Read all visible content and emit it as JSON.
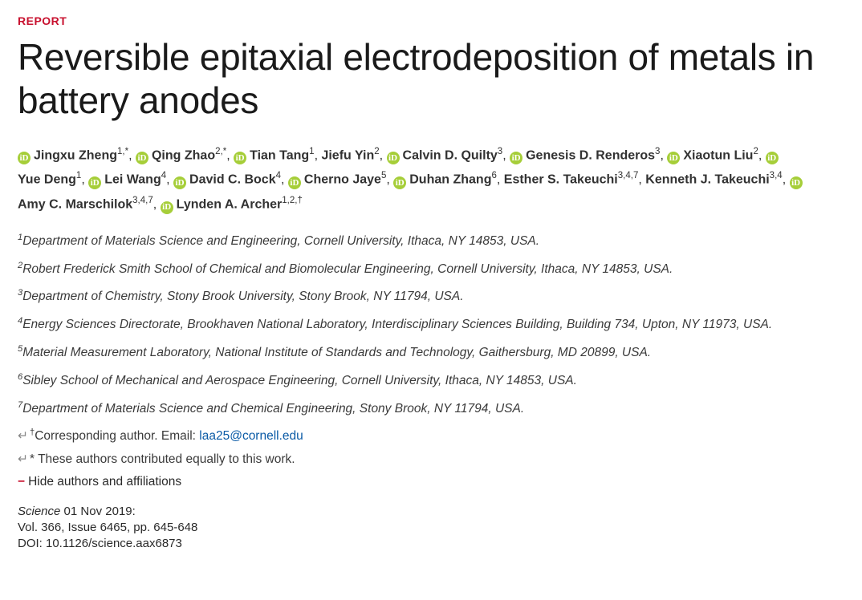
{
  "label": "REPORT",
  "title": "Reversible epitaxial electrodeposition of metals in battery anodes",
  "authors": [
    {
      "name": "Jingxu Zheng",
      "aff": "1,*",
      "orcid": true
    },
    {
      "name": "Qing Zhao",
      "aff": "2,*",
      "orcid": true
    },
    {
      "name": "Tian Tang",
      "aff": "1",
      "orcid": true
    },
    {
      "name": "Jiefu Yin",
      "aff": "2",
      "orcid": false
    },
    {
      "name": "Calvin D. Quilty",
      "aff": "3",
      "orcid": true
    },
    {
      "name": "Genesis D. Renderos",
      "aff": "3",
      "orcid": true
    },
    {
      "name": "Xiaotun Liu",
      "aff": "2",
      "orcid": true
    },
    {
      "name": "Yue Deng",
      "aff": "1",
      "orcid": true
    },
    {
      "name": "Lei Wang",
      "aff": "4",
      "orcid": true
    },
    {
      "name": "David C. Bock",
      "aff": "4",
      "orcid": true
    },
    {
      "name": "Cherno Jaye",
      "aff": "5",
      "orcid": true
    },
    {
      "name": "Duhan Zhang",
      "aff": "6",
      "orcid": true
    },
    {
      "name": "Esther S. Takeuchi",
      "aff": "3,4,7",
      "orcid": false
    },
    {
      "name": "Kenneth J. Takeuchi",
      "aff": "3,4",
      "orcid": false
    },
    {
      "name": "Amy C. Marschilok",
      "aff": "3,4,7",
      "orcid": true
    },
    {
      "name": "Lynden A. Archer",
      "aff": "1,2,†",
      "orcid": true
    }
  ],
  "affiliations": [
    {
      "num": "1",
      "text": "Department of Materials Science and Engineering, Cornell University, Ithaca, NY 14853, USA."
    },
    {
      "num": "2",
      "text": "Robert Frederick Smith School of Chemical and Biomolecular Engineering, Cornell University, Ithaca, NY 14853, USA."
    },
    {
      "num": "3",
      "text": "Department of Chemistry, Stony Brook University, Stony Brook, NY 11794, USA."
    },
    {
      "num": "4",
      "text": "Energy Sciences Directorate, Brookhaven National Laboratory, Interdisciplinary Sciences Building, Building 734, Upton, NY 11973, USA."
    },
    {
      "num": "5",
      "text": "Material Measurement Laboratory, National Institute of Standards and Technology, Gaithersburg, MD 20899, USA."
    },
    {
      "num": "6",
      "text": "Sibley School of Mechanical and Aerospace Engineering, Cornell University, Ithaca, NY 14853, USA."
    },
    {
      "num": "7",
      "text": "Department of Materials Science and Chemical Engineering, Stony Brook, NY 11794, USA."
    }
  ],
  "corr_symbol": "†",
  "corr_text": "Corresponding author. Email: ",
  "corr_email": "laa25@cornell.edu",
  "equal_symbol": "*",
  "equal_text": " These authors contributed equally to this work.",
  "hide_label": "Hide authors and affiliations",
  "citation": {
    "journal": "Science",
    "date": "  01 Nov 2019:",
    "vol": "Vol. 366, Issue 6465, pp. 645-648",
    "doi": "DOI: 10.1126/science.aax6873"
  },
  "colors": {
    "accent": "#c8102e",
    "link": "#0a5aa6",
    "orcid": "#a6ce39",
    "text": "#2a2a2a"
  }
}
